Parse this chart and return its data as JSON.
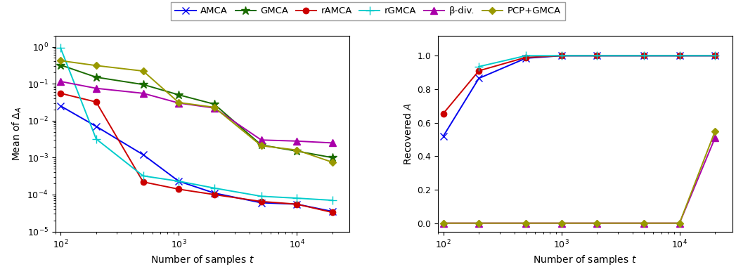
{
  "x_values": [
    100,
    200,
    500,
    1000,
    2000,
    5000,
    10000,
    20000
  ],
  "legend_labels": [
    "AMCA",
    "GMCA",
    "rAMCA",
    "rGMCA",
    "β-div.",
    "PCP+GMCA"
  ],
  "colors": [
    "#0000ee",
    "#1a6b00",
    "#cc0000",
    "#00cccc",
    "#aa00aa",
    "#999900"
  ],
  "markers": [
    "x",
    "*",
    "o",
    "+",
    "^",
    "D"
  ],
  "markersizes": [
    7,
    9,
    6,
    9,
    7,
    5
  ],
  "left_ylabel": "Mean of $\\Delta_A$",
  "right_ylabel": "Recovered $A$",
  "xlabel": "Number of samples $t$",
  "left_data": {
    "AMCA": [
      0.025,
      0.007,
      0.0012,
      0.00023,
      0.00011,
      6e-05,
      5.5e-05,
      3.5e-05
    ],
    "GMCA": [
      0.32,
      0.15,
      0.095,
      0.05,
      0.028,
      0.0022,
      0.0015,
      0.001
    ],
    "rAMCA": [
      0.055,
      0.032,
      0.00022,
      0.00014,
      0.0001,
      6.5e-05,
      5.5e-05,
      3.3e-05
    ],
    "rGMCA": [
      0.92,
      0.0032,
      0.00032,
      0.00023,
      0.00015,
      9e-05,
      8e-05,
      7e-05
    ],
    "beta-div": [
      0.115,
      0.075,
      0.055,
      0.03,
      0.022,
      0.003,
      0.0028,
      0.0025
    ],
    "PCP+GMCA": [
      0.42,
      0.31,
      0.22,
      0.031,
      0.023,
      0.0021,
      0.0016,
      0.00075
    ]
  },
  "right_data": {
    "AMCA": [
      0.52,
      0.865,
      0.985,
      1.0,
      1.0,
      1.0,
      1.0,
      1.0
    ],
    "rAMCA": [
      0.655,
      0.91,
      0.99,
      1.0,
      1.0,
      1.0,
      1.0,
      1.0
    ],
    "rGMCA": [
      null,
      0.935,
      1.0,
      1.0,
      1.0,
      1.0,
      1.0,
      1.0
    ],
    "beta-div": [
      0.0,
      0.0,
      0.0,
      0.0,
      0.0,
      0.0,
      0.0,
      0.51
    ],
    "PCP+GMCA": [
      0.0,
      0.0,
      0.0,
      0.0,
      0.0,
      0.0,
      0.0,
      0.55
    ]
  }
}
